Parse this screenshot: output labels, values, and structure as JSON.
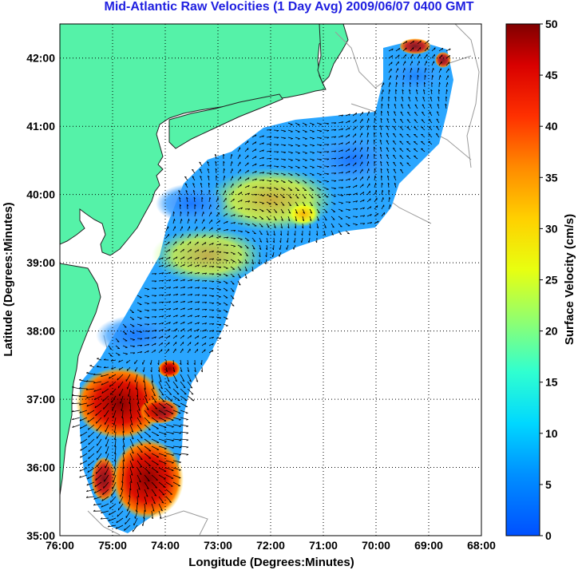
{
  "title": "Mid-Atlantic Raw Velocities (1 Day Avg) 2009/06/07 0400 GMT",
  "map": {
    "xlabel": "Longitude (Degrees:Minutes)",
    "ylabel": "Latitude (Degrees:Minutes)",
    "lon_ticks": [
      "76:00",
      "75:00",
      "74:00",
      "73:00",
      "72:00",
      "71:00",
      "70:00",
      "69:00",
      "68:00"
    ],
    "lat_ticks": [
      "42:00",
      "41:00",
      "40:00",
      "39:00",
      "38:00",
      "37:00",
      "36:00",
      "35:00"
    ],
    "lon_range": [
      -76,
      -68
    ],
    "lat_range": [
      35,
      42.5
    ],
    "land_color": "#55f2a8",
    "grid": "dotted"
  },
  "colorbar": {
    "label": "Surface Velocity (cm/s)",
    "min": 0,
    "max": 50,
    "ticks": [
      "50",
      "45",
      "40",
      "35",
      "30",
      "25",
      "20",
      "15",
      "10",
      "5",
      "0"
    ],
    "colormap": "jet"
  }
}
